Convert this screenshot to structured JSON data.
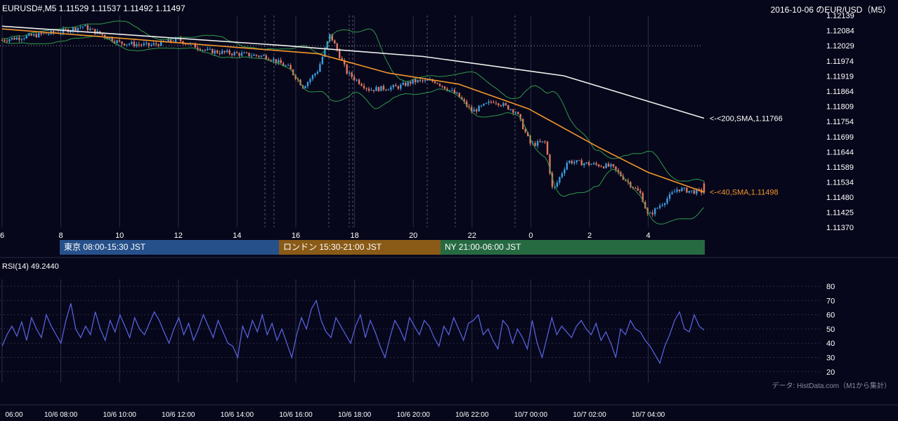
{
  "header": {
    "symbol_info": "EURUSD#,M5 1.11529 1.11537 1.11492 1.11497",
    "title": "2016-10-06 のEUR/USD（M5）"
  },
  "sessions": [
    {
      "label": "東京 08:00-15:30 JST",
      "color": "#26508a"
    },
    {
      "label": "ロンドン 15:30-21:00 JST",
      "color": "#8a5a17"
    },
    {
      "label": "NY 21:00-06:00 JST",
      "color": "#266a42"
    }
  ],
  "rsi_panel": {
    "label": "RSI(14) 49.2440"
  },
  "credit": "データ: HistData.com（M1から集計）",
  "colors": {
    "background": "#07071b",
    "up_candle": "#3a9ee0",
    "down_candle": "#e07860",
    "sma40": "#f0962a",
    "sma200": "#f0f0f0",
    "bollinger": "#2e9a4a",
    "rsi": "#5a66e6"
  },
  "chart_data": [
    {
      "type": "candlestick",
      "timeframe": "M5",
      "y_ticks": [
        "1.12139",
        "1.12084",
        "1.12029",
        "1.11974",
        "1.11919",
        "1.11864",
        "1.11809",
        "1.11754",
        "1.11699",
        "1.11644",
        "1.11589",
        "1.11534",
        "1.11480",
        "1.11425",
        "1.11370"
      ],
      "ylim": [
        1.1137,
        1.12139
      ],
      "x_ticks_hours": [
        "6",
        "8",
        "10",
        "12",
        "14",
        "16",
        "18",
        "20",
        "22",
        "0",
        "2",
        "4"
      ],
      "x_ticks_dates": [
        "06:00",
        "10/6 08:00",
        "10/6 10:00",
        "10/6 12:00",
        "10/6 14:00",
        "10/6 16:00",
        "10/6 18:00",
        "10/6 20:00",
        "10/6 22:00",
        "10/7 00:00",
        "10/7 02:00",
        "10/7 04:00"
      ],
      "last_ohlc": {
        "open": 1.11529,
        "high": 1.11537,
        "low": 1.11492,
        "close": 1.11497
      },
      "approx_close_path": [
        {
          "t": "10/6 06:00",
          "close": 1.1205
        },
        {
          "t": "10/6 08:00",
          "close": 1.1208
        },
        {
          "t": "10/6 08:45",
          "close": 1.121
        },
        {
          "t": "10/6 10:00",
          "close": 1.1204
        },
        {
          "t": "10/6 11:00",
          "close": 1.1203
        },
        {
          "t": "10/6 12:00",
          "close": 1.1205
        },
        {
          "t": "10/6 13:00",
          "close": 1.1201
        },
        {
          "t": "10/6 14:00",
          "close": 1.12
        },
        {
          "t": "10/6 15:00",
          "close": 1.1199
        },
        {
          "t": "10/6 15:45",
          "close": 1.1195
        },
        {
          "t": "10/6 16:15",
          "close": 1.1188
        },
        {
          "t": "10/6 16:45",
          "close": 1.1194
        },
        {
          "t": "10/6 17:10",
          "close": 1.1207
        },
        {
          "t": "10/6 17:45",
          "close": 1.1193
        },
        {
          "t": "10/6 18:30",
          "close": 1.1187
        },
        {
          "t": "10/6 19:30",
          "close": 1.1188
        },
        {
          "t": "10/6 20:00",
          "close": 1.119
        },
        {
          "t": "10/6 20:45",
          "close": 1.119
        },
        {
          "t": "10/6 21:30",
          "close": 1.1185
        },
        {
          "t": "10/6 22:00",
          "close": 1.1179
        },
        {
          "t": "10/6 22:45",
          "close": 1.1183
        },
        {
          "t": "10/6 23:30",
          "close": 1.1179
        },
        {
          "t": "10/7 00:00",
          "close": 1.1167
        },
        {
          "t": "10/7 00:30",
          "close": 1.1168
        },
        {
          "t": "10/7 00:45",
          "close": 1.115
        },
        {
          "t": "10/7 01:15",
          "close": 1.1161
        },
        {
          "t": "10/7 02:00",
          "close": 1.116
        },
        {
          "t": "10/7 02:45",
          "close": 1.1159
        },
        {
          "t": "10/7 03:15",
          "close": 1.1154
        },
        {
          "t": "10/7 03:45",
          "close": 1.1149
        },
        {
          "t": "10/7 04:00",
          "close": 1.1141
        },
        {
          "t": "10/7 04:30",
          "close": 1.1146
        },
        {
          "t": "10/7 05:00",
          "close": 1.1151
        },
        {
          "t": "10/7 05:30",
          "close": 1.115
        }
      ],
      "series": [
        {
          "name": "200,SMA",
          "last_value": "1.11766",
          "label": "<-<200,SMA,1.11766",
          "approx_path": [
            [
              0,
              1.121
            ],
            [
              0.4,
              1.1203
            ],
            [
              0.6,
              1.1199
            ],
            [
              0.8,
              1.1192
            ],
            [
              1.0,
              1.11766
            ]
          ]
        },
        {
          "name": "40,SMA",
          "last_value": "1.11498",
          "label": "<-<40,SMA,1.11498",
          "approx_path": [
            [
              0,
              1.1209
            ],
            [
              0.3,
              1.1203
            ],
            [
              0.45,
              1.12
            ],
            [
              0.55,
              1.1193
            ],
            [
              0.65,
              1.1189
            ],
            [
              0.75,
              1.118
            ],
            [
              0.85,
              1.1166
            ],
            [
              0.92,
              1.1157
            ],
            [
              1.0,
              1.11498
            ]
          ]
        },
        {
          "name": "Bollinger",
          "label": ""
        }
      ],
      "xlabel": "",
      "ylabel": "",
      "grid": true
    },
    {
      "type": "line",
      "name": "RSI(14)",
      "value": 49.244,
      "y_ticks": [
        "80",
        "70",
        "60",
        "50",
        "40",
        "30",
        "20"
      ],
      "ylim": [
        15,
        85
      ],
      "approx_values": [
        38,
        46,
        52,
        45,
        55,
        42,
        58,
        50,
        44,
        60,
        52,
        46,
        40,
        56,
        68,
        50,
        44,
        52,
        46,
        62,
        50,
        42,
        56,
        48,
        60,
        52,
        44,
        58,
        50,
        46,
        54,
        62,
        56,
        48,
        40,
        50,
        58,
        46,
        54,
        42,
        50,
        60,
        52,
        44,
        56,
        48,
        40,
        38,
        30,
        52,
        44,
        56,
        48,
        60,
        46,
        54,
        42,
        50,
        40,
        30,
        46,
        58,
        50,
        64,
        70,
        56,
        48,
        44,
        58,
        52,
        46,
        40,
        52,
        60,
        44,
        56,
        48,
        38,
        30,
        44,
        56,
        50,
        42,
        58,
        52,
        46,
        56,
        52,
        44,
        38,
        52,
        46,
        58,
        50,
        42,
        54,
        56,
        60,
        46,
        50,
        42,
        36,
        56,
        52,
        40,
        50,
        44,
        36,
        56,
        40,
        30,
        44,
        58,
        46,
        52,
        48,
        44,
        52,
        56,
        50,
        46,
        54,
        42,
        48,
        40,
        30,
        50,
        46,
        56,
        50,
        48,
        42,
        38,
        32,
        26,
        38,
        46,
        56,
        62,
        50,
        48,
        60,
        52,
        49.244
      ]
    }
  ]
}
